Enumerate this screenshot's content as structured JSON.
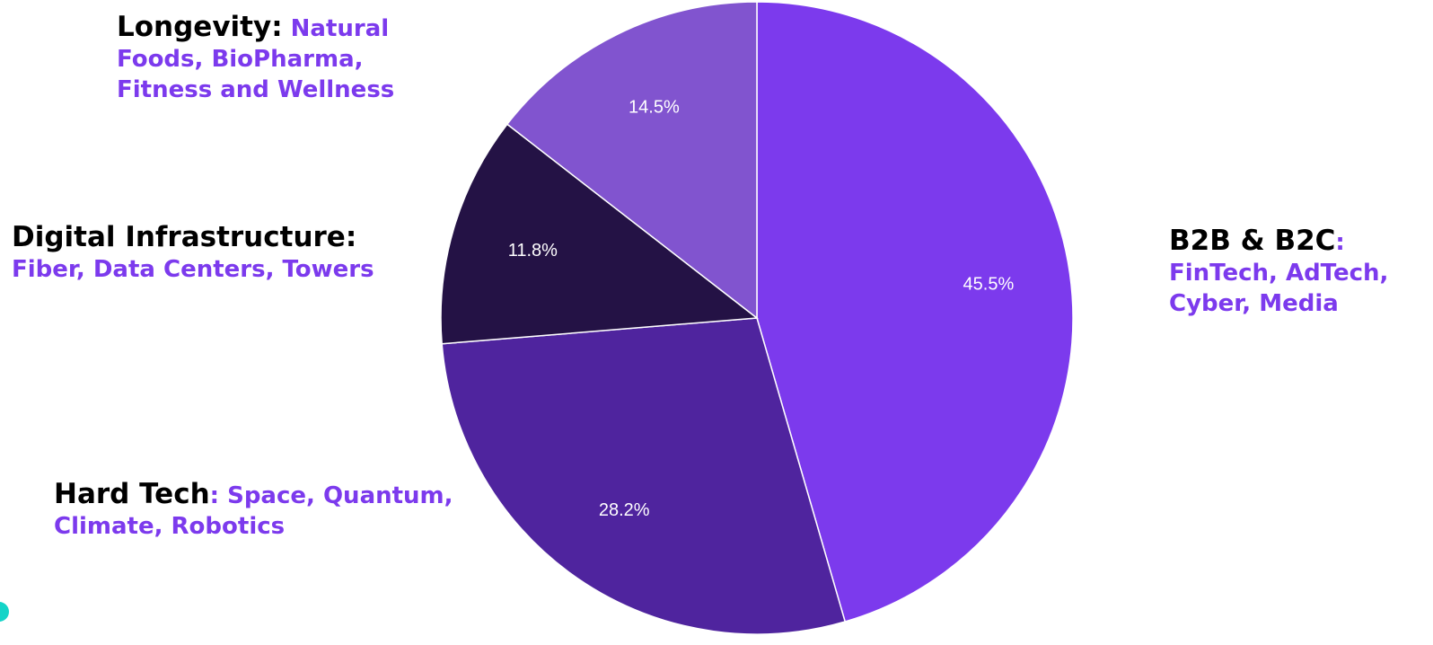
{
  "chart_data": {
    "type": "pie",
    "slices": [
      {
        "name": "B2B & B2C",
        "sep": ":",
        "desc": " FinTech, AdTech, Cyber, Media",
        "value": 45.5,
        "label": "45.5%",
        "color": "#7c3aed"
      },
      {
        "name": "Hard Tech",
        "sep": ":",
        "desc": " Space, Quantum, Climate, Robotics",
        "value": 28.2,
        "label": "28.2%",
        "color": "#4f249e"
      },
      {
        "name": "Digital Infrastructure:",
        "sep": "",
        "desc": " Fiber, Data Centers, Towers",
        "value": 11.8,
        "label": "11.8%",
        "color": "#241245"
      },
      {
        "name": "Longevity:",
        "sep": "",
        "desc": " Natural Foods, BioPharma, Fitness and Wellness",
        "value": 14.5,
        "label": "14.5%",
        "color": "#8154cf"
      }
    ],
    "start": "12 o'clock",
    "direction": "clockwise"
  },
  "accent_color": "#14d4c8"
}
